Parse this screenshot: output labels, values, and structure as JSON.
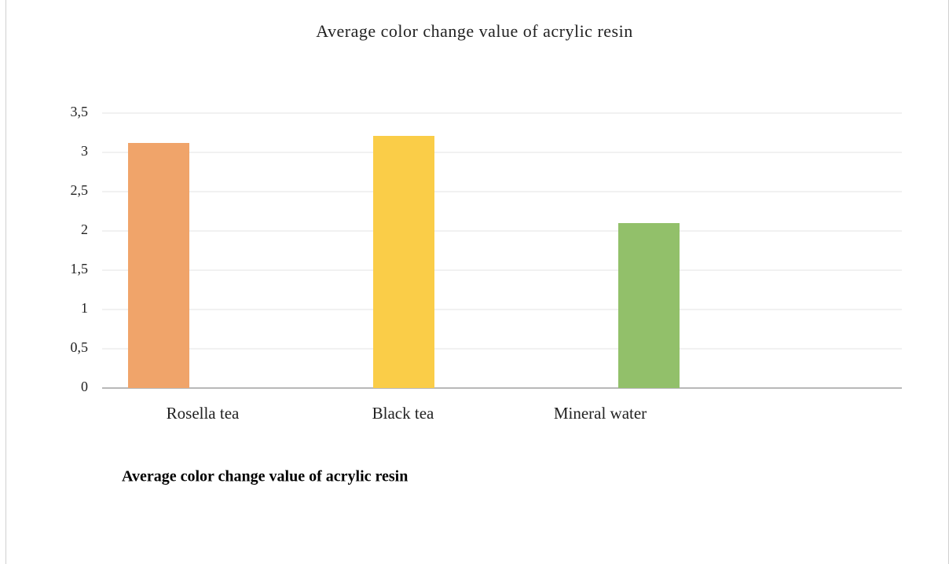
{
  "chart_data": {
    "type": "bar",
    "title": "Average color change value of acrylic resin",
    "categories": [
      "Rosella tea",
      "Black tea",
      "Mineral water"
    ],
    "values": [
      3.12,
      3.21,
      2.1
    ],
    "colors": [
      "#f0a46a",
      "#facd48",
      "#92c06a"
    ],
    "ylim": [
      0,
      3.5
    ],
    "yticks": [
      0,
      {
        "value": 0.5,
        "label": "0,5"
      },
      1,
      {
        "value": 1.5,
        "label": "1,5"
      },
      2,
      {
        "value": 2.5,
        "label": "2,5"
      },
      3,
      {
        "value": 3.5,
        "label": "3,5"
      }
    ],
    "grid": true
  },
  "caption": "Average color change value of acrylic resin"
}
